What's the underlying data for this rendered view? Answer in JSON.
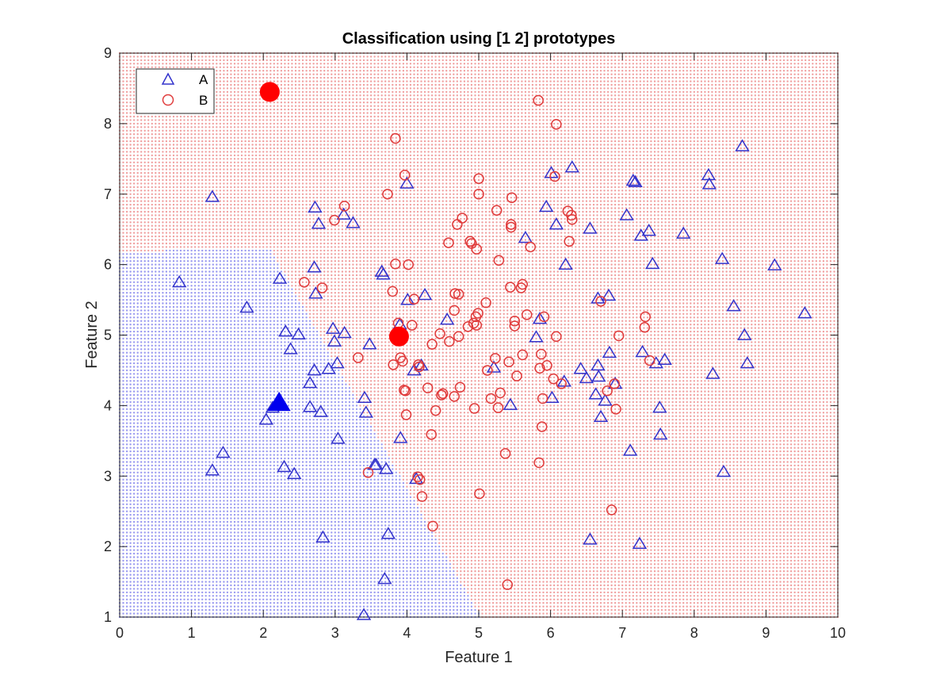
{
  "chart_data": {
    "type": "scatter",
    "title": "Classification using [1 2] prototypes",
    "xlabel": "Feature 1",
    "ylabel": "Feature 2",
    "xlim": [
      0,
      10
    ],
    "ylim": [
      1,
      9
    ],
    "xticks": [
      "0",
      "1",
      "2",
      "3",
      "4",
      "5",
      "6",
      "7",
      "8",
      "9",
      "10"
    ],
    "yticks": [
      "1",
      "2",
      "3",
      "4",
      "5",
      "6",
      "7",
      "8",
      "9"
    ],
    "legend": {
      "placement": "top-left"
    },
    "colors": {
      "A": "#3333cc",
      "B": "#e03b3b",
      "regionA": "#9a9af0",
      "regionB": "#f0a0a0",
      "prototypeA": "#0000ee",
      "prototypeB": "#ff0000"
    },
    "series": [
      {
        "name": "A",
        "marker": "triangle",
        "points": [
          [
            0.83,
            5.75
          ],
          [
            1.29,
            6.96
          ],
          [
            1.29,
            3.08
          ],
          [
            1.44,
            3.33
          ],
          [
            1.77,
            5.39
          ],
          [
            2.04,
            3.8
          ],
          [
            2.13,
            3.97
          ],
          [
            2.23,
            5.8
          ],
          [
            2.29,
            3.13
          ],
          [
            2.31,
            5.05
          ],
          [
            2.38,
            4.8
          ],
          [
            2.43,
            3.03
          ],
          [
            2.49,
            5.01
          ],
          [
            2.65,
            3.98
          ],
          [
            2.65,
            4.32
          ],
          [
            2.71,
            4.5
          ],
          [
            2.71,
            5.96
          ],
          [
            2.72,
            6.81
          ],
          [
            2.73,
            5.59
          ],
          [
            2.77,
            6.58
          ],
          [
            2.8,
            3.91
          ],
          [
            2.83,
            2.13
          ],
          [
            2.91,
            4.52
          ],
          [
            2.97,
            5.09
          ],
          [
            2.99,
            4.91
          ],
          [
            3.03,
            4.6
          ],
          [
            3.04,
            3.53
          ],
          [
            3.12,
            6.71
          ],
          [
            3.13,
            5.03
          ],
          [
            3.25,
            6.59
          ],
          [
            3.41,
            4.11
          ],
          [
            3.43,
            3.9
          ],
          [
            3.48,
            4.87
          ],
          [
            3.55,
            3.16
          ],
          [
            3.57,
            3.16
          ],
          [
            3.65,
            5.9
          ],
          [
            3.67,
            5.86
          ],
          [
            3.69,
            1.54
          ],
          [
            3.71,
            3.1
          ],
          [
            3.74,
            2.18
          ],
          [
            3.4,
            1.03
          ],
          [
            3.9,
            5.15
          ],
          [
            3.91,
            3.54
          ],
          [
            4.0,
            7.15
          ],
          [
            4.01,
            5.5
          ],
          [
            4.1,
            4.5
          ],
          [
            4.13,
            2.96
          ],
          [
            4.2,
            4.57
          ],
          [
            4.25,
            5.57
          ],
          [
            4.56,
            5.22
          ],
          [
            5.21,
            4.54
          ],
          [
            5.44,
            4.01
          ],
          [
            5.65,
            6.38
          ],
          [
            5.8,
            4.97
          ],
          [
            5.85,
            5.23
          ],
          [
            5.94,
            6.82
          ],
          [
            6.01,
            7.3
          ],
          [
            6.02,
            4.11
          ],
          [
            6.08,
            6.57
          ],
          [
            6.19,
            4.34
          ],
          [
            6.21,
            6.0
          ],
          [
            6.3,
            7.38
          ],
          [
            6.42,
            4.52
          ],
          [
            6.5,
            4.39
          ],
          [
            6.55,
            6.51
          ],
          [
            6.55,
            2.1
          ],
          [
            6.63,
            4.16
          ],
          [
            6.66,
            5.52
          ],
          [
            6.66,
            4.57
          ],
          [
            6.67,
            4.41
          ],
          [
            6.7,
            3.84
          ],
          [
            6.76,
            4.07
          ],
          [
            6.81,
            5.56
          ],
          [
            6.82,
            4.75
          ],
          [
            6.9,
            4.31
          ],
          [
            7.06,
            6.7
          ],
          [
            7.11,
            3.36
          ],
          [
            7.15,
            7.19
          ],
          [
            7.18,
            7.17
          ],
          [
            7.24,
            2.04
          ],
          [
            7.26,
            6.41
          ],
          [
            7.28,
            4.76
          ],
          [
            7.37,
            6.48
          ],
          [
            7.42,
            6.01
          ],
          [
            7.47,
            4.6
          ],
          [
            7.52,
            3.97
          ],
          [
            7.53,
            3.59
          ],
          [
            7.59,
            4.65
          ],
          [
            7.85,
            6.44
          ],
          [
            8.2,
            7.27
          ],
          [
            8.21,
            7.14
          ],
          [
            8.26,
            4.45
          ],
          [
            8.39,
            6.08
          ],
          [
            8.41,
            3.06
          ],
          [
            8.55,
            5.41
          ],
          [
            8.67,
            7.68
          ],
          [
            8.7,
            5.0
          ],
          [
            8.74,
            4.6
          ],
          [
            9.12,
            5.99
          ],
          [
            9.54,
            5.31
          ]
        ]
      },
      {
        "name": "B",
        "marker": "circle",
        "points": [
          [
            2.57,
            5.75
          ],
          [
            2.82,
            5.67
          ],
          [
            2.99,
            6.63
          ],
          [
            3.13,
            6.83
          ],
          [
            3.32,
            4.68
          ],
          [
            3.46,
            3.05
          ],
          [
            3.73,
            7.0
          ],
          [
            3.8,
            5.62
          ],
          [
            3.84,
            6.01
          ],
          [
            3.84,
            7.79
          ],
          [
            3.94,
            4.63
          ],
          [
            3.96,
            4.22
          ],
          [
            3.97,
            7.27
          ],
          [
            3.99,
            3.87
          ],
          [
            4.02,
            6.0
          ],
          [
            4.07,
            5.14
          ],
          [
            4.1,
            5.51
          ],
          [
            4.15,
            2.99
          ],
          [
            4.16,
            4.58
          ],
          [
            4.17,
            4.55
          ],
          [
            4.18,
            2.95
          ],
          [
            4.21,
            2.71
          ],
          [
            4.29,
            4.25
          ],
          [
            4.34,
            3.59
          ],
          [
            4.35,
            4.87
          ],
          [
            4.36,
            2.29
          ],
          [
            4.4,
            3.93
          ],
          [
            4.46,
            5.02
          ],
          [
            4.48,
            4.15
          ],
          [
            4.5,
            4.17
          ],
          [
            4.58,
            6.31
          ],
          [
            4.59,
            4.91
          ],
          [
            4.66,
            4.13
          ],
          [
            4.66,
            5.35
          ],
          [
            4.67,
            5.59
          ],
          [
            4.7,
            6.57
          ],
          [
            4.72,
            4.98
          ],
          [
            4.72,
            5.58
          ],
          [
            4.74,
            4.26
          ],
          [
            4.77,
            6.66
          ],
          [
            4.85,
            5.12
          ],
          [
            4.88,
            6.33
          ],
          [
            4.9,
            6.3
          ],
          [
            4.93,
            5.17
          ],
          [
            4.94,
            3.96
          ],
          [
            4.96,
            5.26
          ],
          [
            4.97,
            5.14
          ],
          [
            4.97,
            6.22
          ],
          [
            4.99,
            5.31
          ],
          [
            5.0,
            7.0
          ],
          [
            5.0,
            7.22
          ],
          [
            5.01,
            2.75
          ],
          [
            5.1,
            5.46
          ],
          [
            5.12,
            4.5
          ],
          [
            5.17,
            4.1
          ],
          [
            5.23,
            4.67
          ],
          [
            5.25,
            6.77
          ],
          [
            5.27,
            3.97
          ],
          [
            5.28,
            6.06
          ],
          [
            5.3,
            4.18
          ],
          [
            5.37,
            3.32
          ],
          [
            5.4,
            1.46
          ],
          [
            5.42,
            4.62
          ],
          [
            5.44,
            5.68
          ],
          [
            5.45,
            6.53
          ],
          [
            5.45,
            6.57
          ],
          [
            5.46,
            6.95
          ],
          [
            5.5,
            5.13
          ],
          [
            5.5,
            5.2
          ],
          [
            5.53,
            4.42
          ],
          [
            5.59,
            5.67
          ],
          [
            5.61,
            5.72
          ],
          [
            5.61,
            4.72
          ],
          [
            5.67,
            5.29
          ],
          [
            5.72,
            6.25
          ],
          [
            5.83,
            8.33
          ],
          [
            5.84,
            3.19
          ],
          [
            5.85,
            4.53
          ],
          [
            5.87,
            4.73
          ],
          [
            5.88,
            3.7
          ],
          [
            5.89,
            4.1
          ],
          [
            5.91,
            5.26
          ],
          [
            5.95,
            4.57
          ],
          [
            6.04,
            4.38
          ],
          [
            6.06,
            7.25
          ],
          [
            6.08,
            4.98
          ],
          [
            6.08,
            7.99
          ],
          [
            6.15,
            4.31
          ],
          [
            6.24,
            6.76
          ],
          [
            6.26,
            6.33
          ],
          [
            6.29,
            6.7
          ],
          [
            6.3,
            6.64
          ],
          [
            6.7,
            5.48
          ],
          [
            6.79,
            4.21
          ],
          [
            6.85,
            2.52
          ],
          [
            6.89,
            4.31
          ],
          [
            6.91,
            3.95
          ],
          [
            6.95,
            4.99
          ],
          [
            7.31,
            5.11
          ],
          [
            7.32,
            5.26
          ],
          [
            7.38,
            4.64
          ],
          [
            3.81,
            4.58
          ],
          [
            3.88,
            5.17
          ],
          [
            3.91,
            4.68
          ],
          [
            3.98,
            4.21
          ]
        ]
      },
      {
        "name": "Prototype A",
        "marker": "filled-triangle",
        "points": [
          [
            2.22,
            4.04
          ]
        ]
      },
      {
        "name": "Prototype B",
        "marker": "filled-circle",
        "points": [
          [
            2.09,
            8.45
          ],
          [
            3.89,
            4.98
          ]
        ]
      }
    ]
  }
}
